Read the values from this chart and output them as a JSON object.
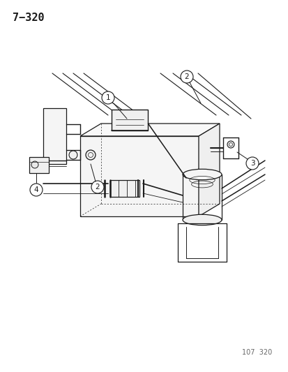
{
  "title": "7−320",
  "footer": "107  320",
  "bg_color": "#ffffff",
  "line_color": "#1a1a1a",
  "title_fontsize": 11,
  "footer_fontsize": 7,
  "callout_fontsize": 7.5
}
